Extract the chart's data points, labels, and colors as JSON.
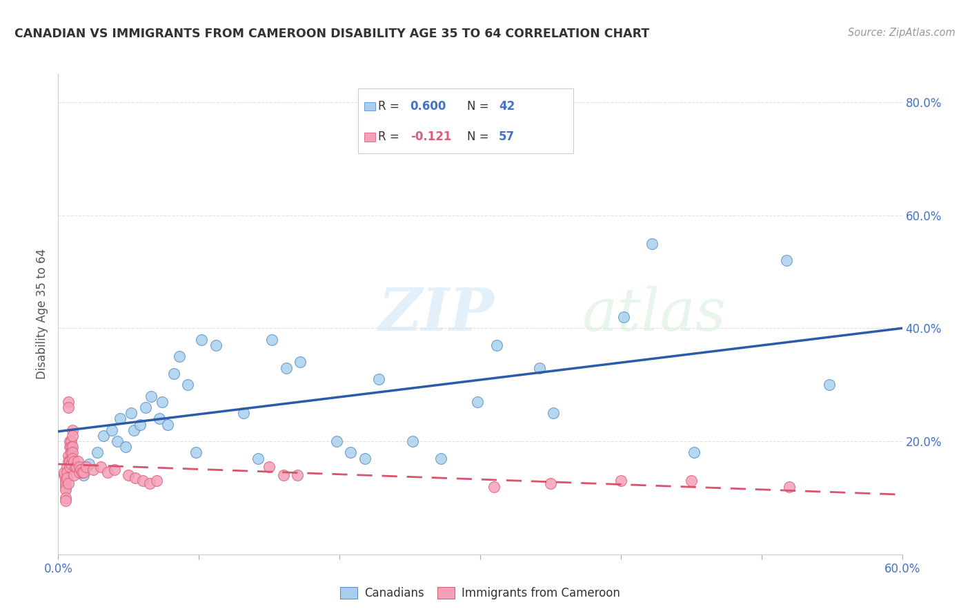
{
  "title": "CANADIAN VS IMMIGRANTS FROM CAMEROON DISABILITY AGE 35 TO 64 CORRELATION CHART",
  "source": "Source: ZipAtlas.com",
  "ylabel": "Disability Age 35 to 64",
  "xlim": [
    0.0,
    0.6
  ],
  "ylim": [
    0.0,
    0.85
  ],
  "x_ticks": [
    0.0,
    0.1,
    0.2,
    0.3,
    0.4,
    0.5,
    0.6
  ],
  "x_tick_labels": [
    "0.0%",
    "",
    "",
    "",
    "",
    "",
    "60.0%"
  ],
  "y_ticks": [
    0.0,
    0.2,
    0.4,
    0.6,
    0.8
  ],
  "y_tick_labels": [
    "",
    "20.0%",
    "40.0%",
    "60.0%",
    "80.0%"
  ],
  "canadians_R": "0.600",
  "canadians_N": "42",
  "immigrants_R": "-0.121",
  "immigrants_N": "57",
  "canadians_color": "#a8d0ee",
  "immigrants_color": "#f4a0b8",
  "canadians_edge_color": "#5b8fc9",
  "immigrants_edge_color": "#e0607a",
  "canadians_line_color": "#2a5caa",
  "immigrants_line_color": "#d9536a",
  "watermark": "ZIPatlas",
  "watermark_zip_color": "#cde5f5",
  "watermark_atlas_color": "#d8eedb",
  "background_color": "#ffffff",
  "grid_color": "#dddddd",
  "tick_label_color": "#4472c4",
  "title_color": "#333333",
  "source_color": "#999999",
  "canadians_x": [
    0.018,
    0.022,
    0.028,
    0.032,
    0.038,
    0.042,
    0.044,
    0.048,
    0.052,
    0.054,
    0.058,
    0.062,
    0.066,
    0.072,
    0.074,
    0.078,
    0.082,
    0.086,
    0.092,
    0.098,
    0.102,
    0.112,
    0.132,
    0.142,
    0.152,
    0.162,
    0.172,
    0.198,
    0.208,
    0.218,
    0.228,
    0.252,
    0.272,
    0.298,
    0.312,
    0.342,
    0.352,
    0.402,
    0.422,
    0.452,
    0.518,
    0.548
  ],
  "canadians_y": [
    0.14,
    0.16,
    0.18,
    0.21,
    0.22,
    0.2,
    0.24,
    0.19,
    0.25,
    0.22,
    0.23,
    0.26,
    0.28,
    0.24,
    0.27,
    0.23,
    0.32,
    0.35,
    0.3,
    0.18,
    0.38,
    0.37,
    0.25,
    0.17,
    0.38,
    0.33,
    0.34,
    0.2,
    0.18,
    0.17,
    0.31,
    0.2,
    0.17,
    0.27,
    0.37,
    0.33,
    0.25,
    0.42,
    0.55,
    0.18,
    0.52,
    0.3
  ],
  "immigrants_x": [
    0.004,
    0.004,
    0.005,
    0.005,
    0.005,
    0.005,
    0.005,
    0.005,
    0.006,
    0.006,
    0.006,
    0.007,
    0.007,
    0.007,
    0.007,
    0.007,
    0.008,
    0.008,
    0.008,
    0.008,
    0.009,
    0.009,
    0.009,
    0.009,
    0.01,
    0.01,
    0.01,
    0.01,
    0.01,
    0.011,
    0.011,
    0.012,
    0.013,
    0.014,
    0.015,
    0.015,
    0.016,
    0.017,
    0.018,
    0.02,
    0.025,
    0.03,
    0.035,
    0.04,
    0.05,
    0.055,
    0.06,
    0.065,
    0.07,
    0.15,
    0.16,
    0.17,
    0.31,
    0.35,
    0.4,
    0.45,
    0.52
  ],
  "immigrants_y": [
    0.14,
    0.145,
    0.13,
    0.125,
    0.12,
    0.115,
    0.1,
    0.095,
    0.155,
    0.145,
    0.135,
    0.27,
    0.26,
    0.175,
    0.165,
    0.125,
    0.2,
    0.19,
    0.165,
    0.155,
    0.2,
    0.19,
    0.18,
    0.16,
    0.22,
    0.21,
    0.19,
    0.18,
    0.17,
    0.165,
    0.14,
    0.155,
    0.155,
    0.165,
    0.155,
    0.145,
    0.15,
    0.145,
    0.145,
    0.155,
    0.15,
    0.155,
    0.145,
    0.15,
    0.14,
    0.135,
    0.13,
    0.125,
    0.13,
    0.155,
    0.14,
    0.14,
    0.12,
    0.125,
    0.13,
    0.13,
    0.12
  ]
}
